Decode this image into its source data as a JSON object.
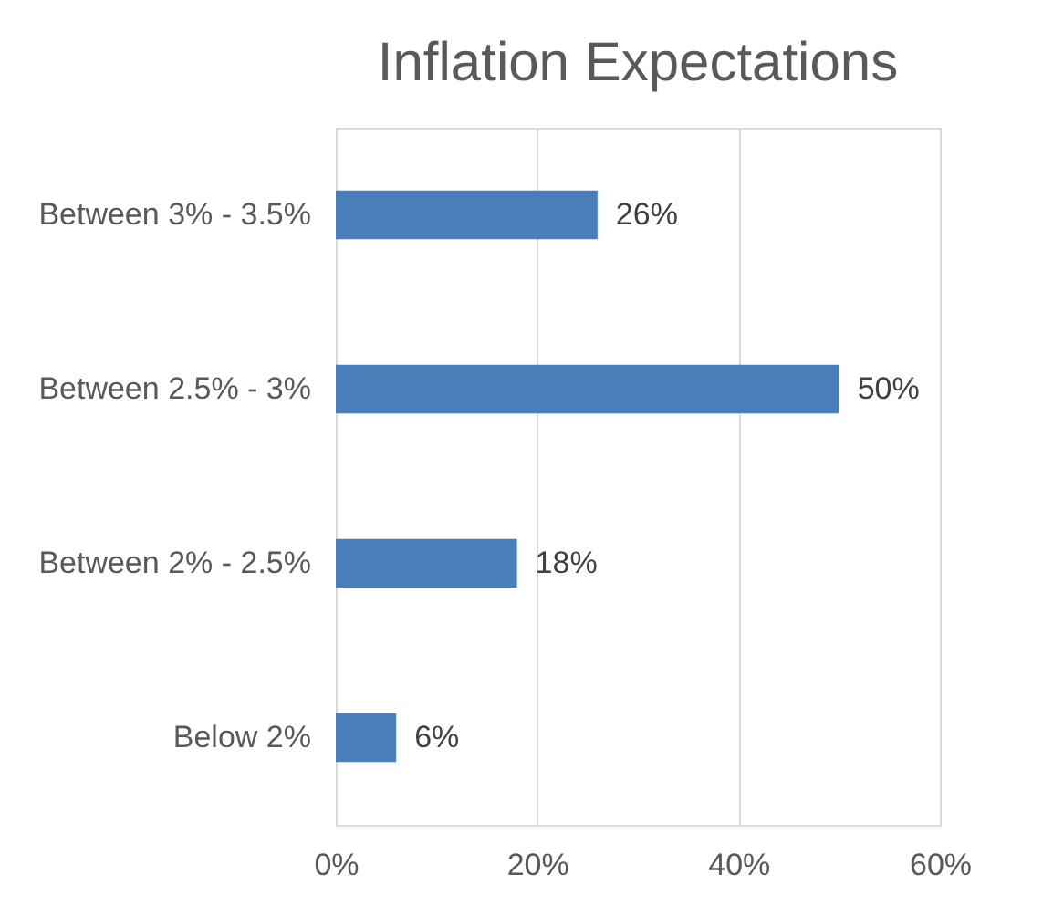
{
  "chart_data": {
    "type": "bar",
    "title": "Inflation Expectations",
    "orientation": "horizontal",
    "categories": [
      "Between 3% - 3.5%",
      "Between 2.5% - 3%",
      "Between 2% - 2.5%",
      "Below 2%"
    ],
    "values": [
      26,
      50,
      18,
      6
    ],
    "color": "#4a7ebb",
    "value_labels": [
      "26%",
      "50%",
      "18%",
      "6%"
    ],
    "xlim": [
      0,
      60
    ],
    "xticks": [
      {
        "value": 0,
        "label": "0%"
      },
      {
        "value": 20,
        "label": "20%"
      },
      {
        "value": 40,
        "label": "40%"
      },
      {
        "value": 60,
        "label": "60%"
      }
    ],
    "grid": "x"
  }
}
